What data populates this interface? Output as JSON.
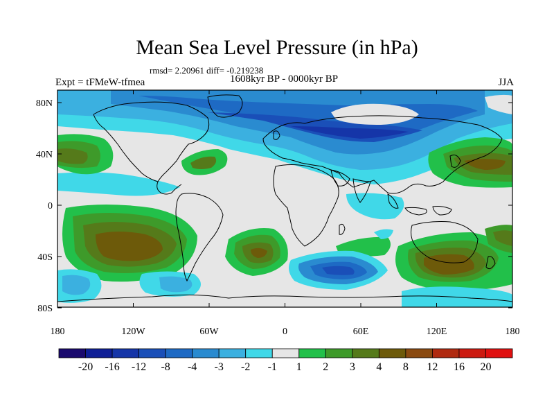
{
  "title": "Mean Sea Level Pressure (in hPa)",
  "stats": "rmsd= 2.20961 diff= -0.219238",
  "subtitle": "1608kyr BP - 0000kyr BP",
  "experiment": "Expt = tFMeW-tfmea",
  "season": "JJA",
  "lat_ticks": [
    "80N",
    "40N",
    "0",
    "40S",
    "80S"
  ],
  "lon_ticks": [
    "180",
    "120W",
    "60W",
    "0",
    "60E",
    "120E",
    "180"
  ],
  "colorbar": {
    "labels": [
      "-20",
      "-16",
      "-12",
      "-8",
      "-4",
      "-3",
      "-2",
      "-1",
      "1",
      "2",
      "3",
      "4",
      "8",
      "12",
      "16",
      "20"
    ],
    "colors": [
      "#1a0a6e",
      "#0f1f96",
      "#1535a8",
      "#1a4fb8",
      "#1e6ac4",
      "#2a8bd0",
      "#3bb0e0",
      "#40d8e8",
      "#e6e6e6",
      "#22c04a",
      "#3e9a2a",
      "#557a1a",
      "#6d5a0a",
      "#8a4a10",
      "#b02a10",
      "#cc1a10",
      "#e01010"
    ]
  },
  "map_region": {
    "lon_range": [
      -180,
      180
    ],
    "lat_range": [
      -85,
      90
    ]
  }
}
